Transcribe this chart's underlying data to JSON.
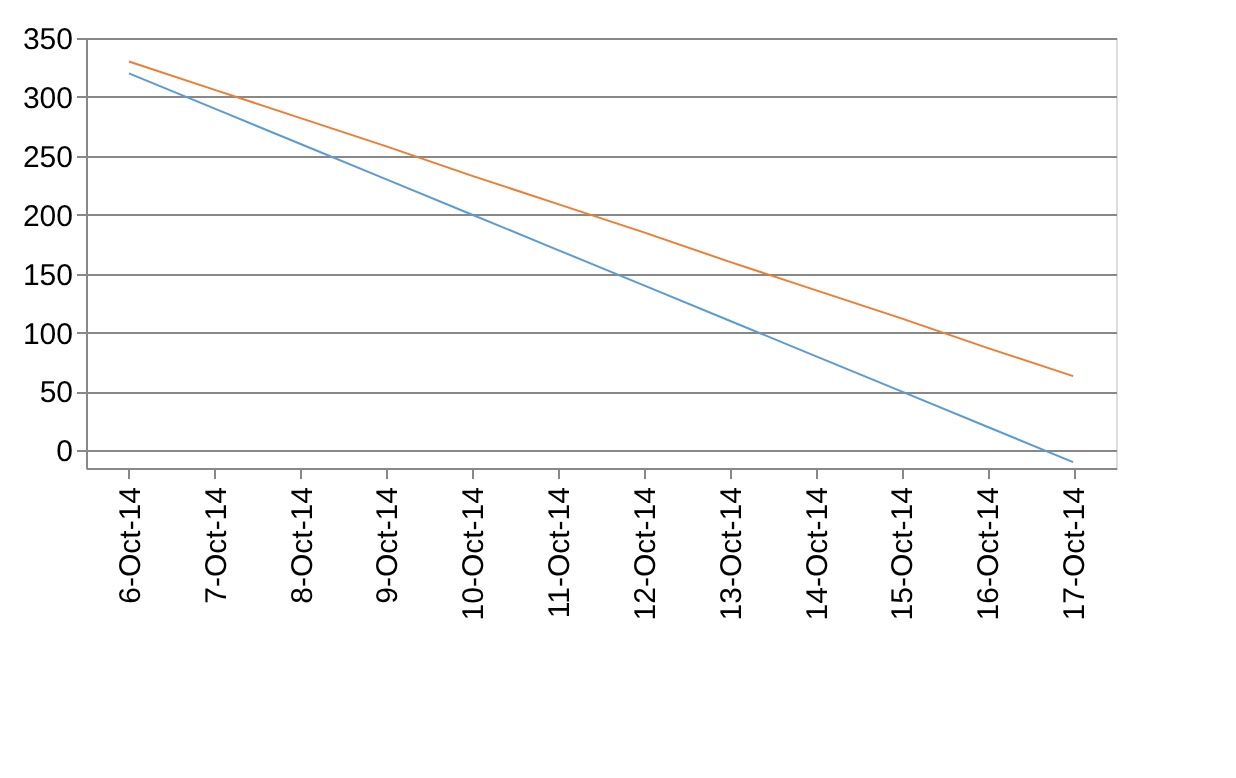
{
  "chart_data": {
    "type": "line",
    "categories": [
      "6-Oct-14",
      "7-Oct-14",
      "8-Oct-14",
      "9-Oct-14",
      "10-Oct-14",
      "11-Oct-14",
      "12-Oct-14",
      "13-Oct-14",
      "14-Oct-14",
      "15-Oct-14",
      "16-Oct-14",
      "17-Oct-14"
    ],
    "series": [
      {
        "color": "#5b9bd5",
        "values": [
          320,
          290,
          260,
          230,
          200,
          170,
          140,
          110,
          80,
          50,
          20,
          -10
        ]
      },
      {
        "color": "#ed7d31",
        "values": [
          330,
          306,
          282,
          258,
          233,
          209,
          185,
          160,
          136,
          112,
          87,
          63
        ]
      }
    ],
    "ylim": [
      -15,
      350
    ],
    "yticks": [
      0,
      50,
      100,
      150,
      200,
      250,
      300,
      350
    ],
    "grid": "y",
    "legend": false,
    "marker": "none",
    "line_style": "solid"
  }
}
